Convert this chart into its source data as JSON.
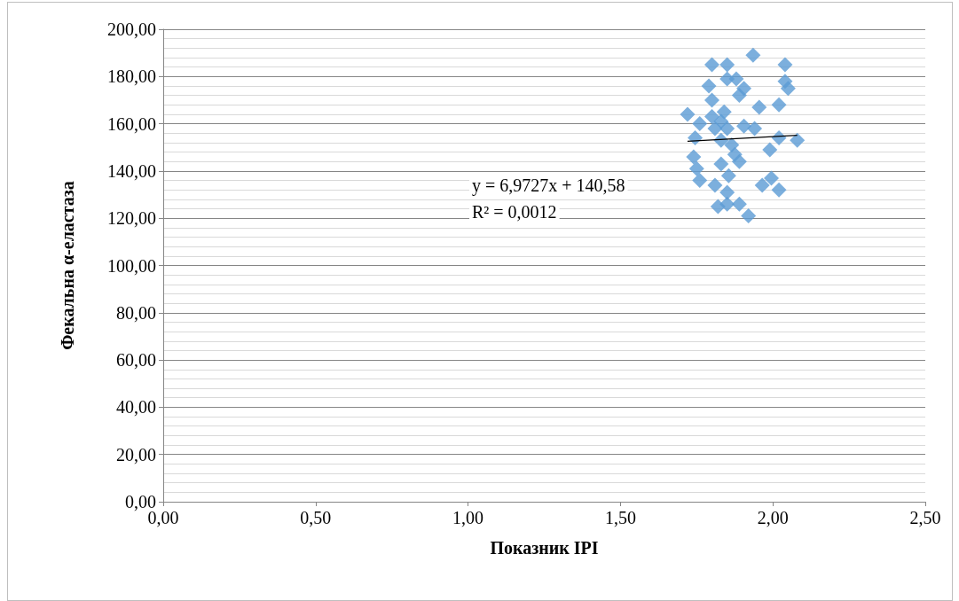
{
  "chart_data": {
    "type": "scatter",
    "xlabel": "Показник IPI",
    "ylabel": "Фекальна α-еластаза",
    "xlim": [
      0,
      2.5
    ],
    "ylim": [
      0,
      200
    ],
    "xticks": [
      {
        "value": 0,
        "label": "0,00"
      },
      {
        "value": 0.5,
        "label": "0,50"
      },
      {
        "value": 1,
        "label": "1,00"
      },
      {
        "value": 1.5,
        "label": "1,50"
      },
      {
        "value": 2,
        "label": "2,00"
      },
      {
        "value": 2.5,
        "label": "2,50"
      }
    ],
    "yticks": [
      {
        "value": 0,
        "label": "0,00"
      },
      {
        "value": 20,
        "label": "20,00"
      },
      {
        "value": 40,
        "label": "40,00"
      },
      {
        "value": 60,
        "label": "60,00"
      },
      {
        "value": 80,
        "label": "80,00"
      },
      {
        "value": 100,
        "label": "100,00"
      },
      {
        "value": 120,
        "label": "120,00"
      },
      {
        "value": 140,
        "label": "140,00"
      },
      {
        "value": 160,
        "label": "160,00"
      },
      {
        "value": 180,
        "label": "180,00"
      },
      {
        "value": 200,
        "label": "200,00"
      }
    ],
    "grid": "y",
    "marker": "diamond",
    "annotations": [
      "y = 6,9727x + 140,58",
      "R² = 0,0012"
    ],
    "series": [
      {
        "color": "#5b9bd5",
        "x": [
          1.935,
          1.8,
          1.85,
          2.04,
          1.85,
          1.88,
          2.04,
          2.05,
          1.905,
          1.79,
          1.89,
          1.8,
          1.955,
          2.02,
          1.72,
          1.84,
          1.8,
          1.76,
          1.83,
          1.905,
          1.94,
          1.81,
          1.85,
          1.745,
          1.83,
          2.02,
          2.08,
          1.99,
          1.865,
          1.875,
          1.89,
          1.74,
          1.83,
          1.75,
          1.855,
          1.76,
          1.81,
          1.965,
          1.995,
          2.02,
          1.85,
          1.82,
          1.85,
          1.89,
          1.92
        ],
        "values": [
          189,
          185,
          185,
          185,
          179,
          179,
          178,
          175,
          175,
          176,
          172,
          170,
          167,
          168,
          164,
          165,
          163,
          160,
          161,
          159,
          158,
          158,
          158,
          154,
          153,
          154,
          153,
          149,
          151,
          147,
          144,
          146,
          143,
          141,
          138,
          136,
          134,
          134,
          137,
          132,
          131,
          125,
          126,
          126,
          121
        ]
      },
      {
        "type": "line",
        "color": "#000000",
        "marker": "none",
        "x": [
          1.72,
          2.08
        ],
        "values": [
          152.6,
          155.1
        ]
      }
    ]
  }
}
